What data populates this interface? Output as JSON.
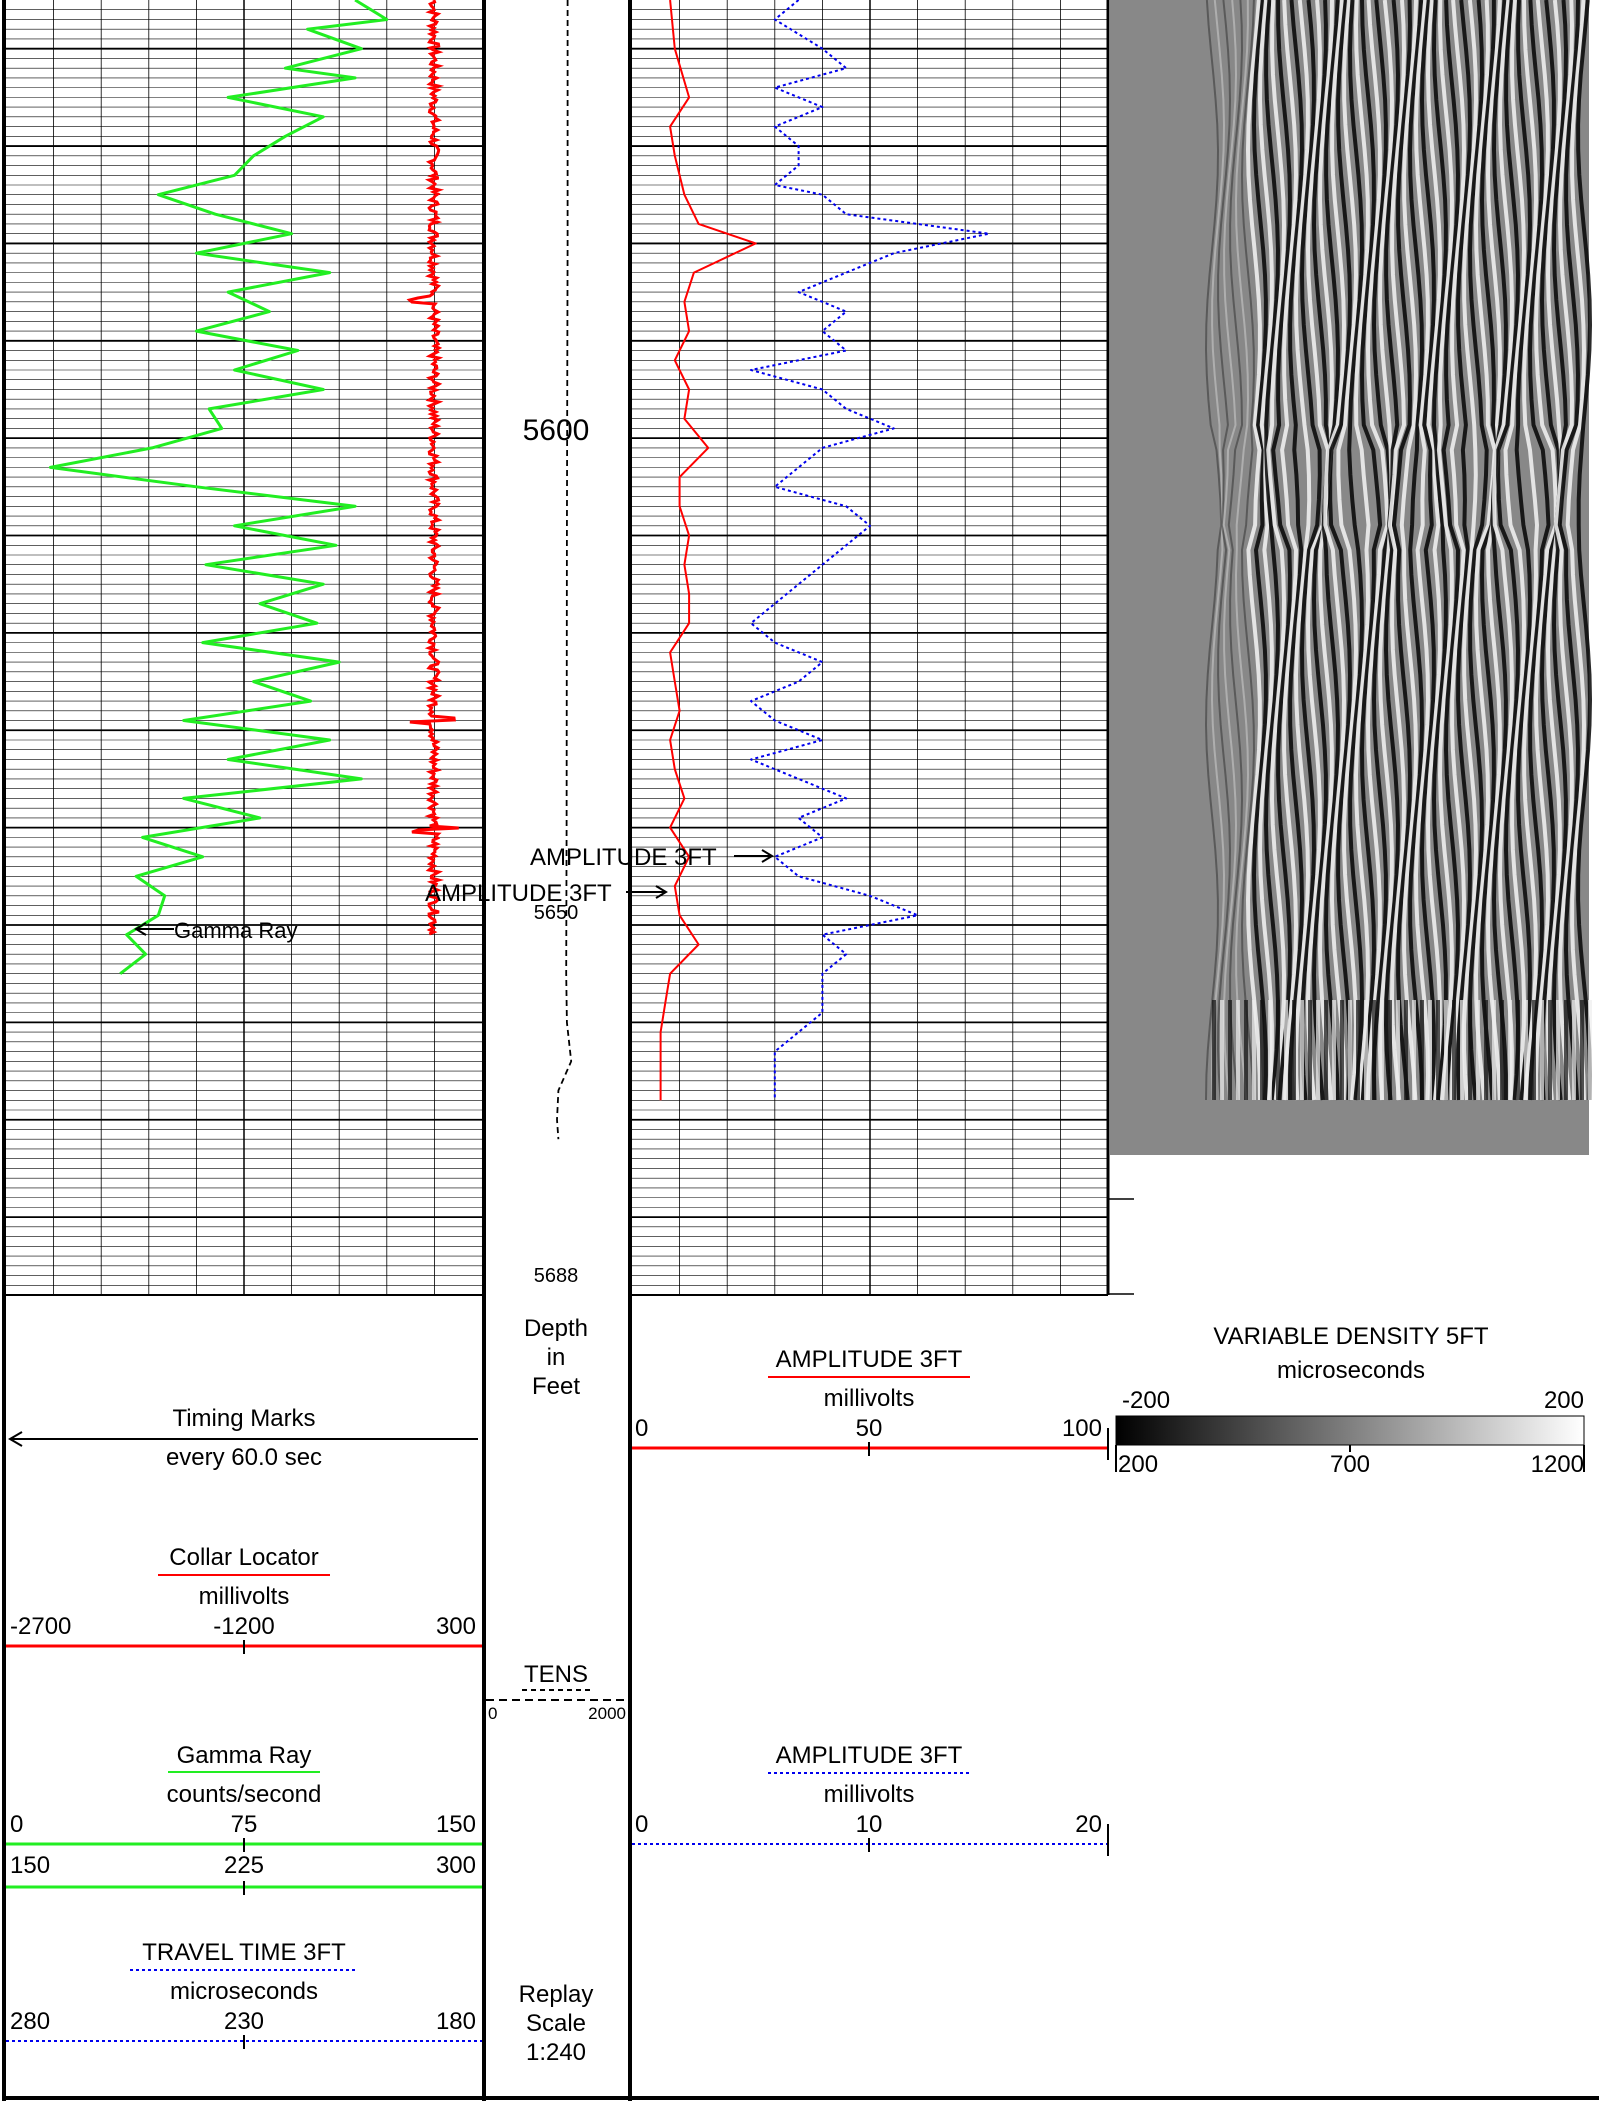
{
  "colors": {
    "gamma": "#22ee22",
    "collar": "#ff0000",
    "amp_red": "#ff0000",
    "amp_blue": "#0000ee",
    "tens": "#000000",
    "vdl_bg": "#888888"
  },
  "depth_track": {
    "labels": [
      "5600",
      "5650",
      "5688"
    ],
    "unit_lines": [
      "Depth",
      "in",
      "Feet"
    ],
    "replay": [
      "Replay",
      "Scale",
      "1:240"
    ]
  },
  "curve_labels": {
    "gamma": "Gamma Ray",
    "amp_upper": "AMPLITUDE 3FT",
    "amp_lower": "AMPLITUDE 3FT"
  },
  "legend": {
    "timing": {
      "title": "Timing Marks",
      "sub": "every 60.0 sec"
    },
    "collar": {
      "title": "Collar Locator",
      "unit": "millivolts",
      "left": "-2700",
      "mid": "-1200",
      "right": "300"
    },
    "gamma": {
      "title": "Gamma Ray",
      "unit": "counts/second",
      "scale1": {
        "left": "0",
        "mid": "75",
        "right": "150"
      },
      "scale2": {
        "left": "150",
        "mid": "225",
        "right": "300"
      }
    },
    "travel": {
      "title": "TRAVEL TIME 3FT",
      "unit": "microseconds",
      "left": "280",
      "mid": "230",
      "right": "180"
    },
    "tens": {
      "title": "TENS",
      "left": "0",
      "right": "2000"
    },
    "amp_red": {
      "title": "AMPLITUDE 3FT",
      "unit": "millivolts",
      "left": "0",
      "mid": "50",
      "right": "100"
    },
    "amp_blue": {
      "title": "AMPLITUDE 3FT",
      "unit": "millivolts",
      "left": "0",
      "mid": "10",
      "right": "20"
    },
    "vdl": {
      "title": "VARIABLE DENSITY 5FT",
      "unit": "microseconds",
      "amp_left": "-200",
      "amp_right": "200",
      "t_left": "200",
      "t_mid": "700",
      "t_right": "1200"
    }
  },
  "chart_data": {
    "type": "line",
    "depth_range": [
      5555,
      5688
    ],
    "series": [
      {
        "name": "Gamma Ray",
        "scale": [
          0,
          150
        ],
        "depth": [
          5555,
          5557,
          5558,
          5560,
          5562,
          5563,
          5565,
          5567,
          5569,
          5571,
          5573,
          5575,
          5577,
          5579,
          5581,
          5583,
          5585,
          5587,
          5589,
          5591,
          5593,
          5595,
          5597,
          5599,
          5601,
          5603,
          5605,
          5607,
          5609,
          5611,
          5613,
          5615,
          5617,
          5619,
          5621,
          5623,
          5625,
          5627,
          5629,
          5631,
          5633,
          5635,
          5637,
          5639,
          5641,
          5643,
          5645,
          5647,
          5649,
          5651,
          5653,
          5655
        ],
        "values": [
          110,
          120,
          95,
          112,
          88,
          110,
          70,
          100,
          88,
          78,
          72,
          48,
          66,
          90,
          60,
          102,
          70,
          83,
          60,
          92,
          72,
          100,
          64,
          68,
          46,
          14,
          60,
          110,
          72,
          104,
          63,
          100,
          80,
          98,
          62,
          105,
          78,
          96,
          56,
          102,
          70,
          112,
          56,
          80,
          43,
          62,
          41,
          50,
          48,
          38,
          44,
          36
        ]
      },
      {
        "name": "Collar Locator",
        "scale": [
          -2700,
          300
        ],
        "points": "spiky"
      },
      {
        "name": "AMPLITUDE 3FT",
        "scale": [
          0,
          100
        ],
        "depth": [
          5555,
          5560,
          5565,
          5568,
          5571,
          5573,
          5575,
          5578,
          5580,
          5583,
          5586,
          5589,
          5592,
          5595,
          5598,
          5601,
          5604,
          5607,
          5610,
          5613,
          5616,
          5619,
          5622,
          5625,
          5628,
          5631,
          5634,
          5637,
          5640,
          5643,
          5646,
          5649,
          5652,
          5655,
          5658,
          5661,
          5665,
          5668
        ],
        "values": [
          8,
          9,
          12,
          8,
          9,
          10,
          11,
          14,
          26,
          13,
          11,
          12,
          9,
          12,
          11,
          16,
          10,
          10,
          12,
          11,
          12,
          12,
          8,
          9,
          10,
          8,
          9,
          11,
          8,
          12,
          9,
          10,
          14,
          8,
          7,
          6,
          6,
          6
        ]
      },
      {
        "name": "AMPLITUDE 3FT",
        "scale": [
          0,
          20
        ],
        "depth": [
          5555,
          5557,
          5560,
          5562,
          5564,
          5566,
          5568,
          5570,
          5572,
          5574,
          5575,
          5577,
          5579,
          5581,
          5583,
          5585,
          5587,
          5589,
          5591,
          5593,
          5595,
          5597,
          5599,
          5601,
          5603,
          5605,
          5607,
          5609,
          5611,
          5613,
          5615,
          5617,
          5619,
          5621,
          5623,
          5625,
          5627,
          5629,
          5631,
          5633,
          5635,
          5637,
          5639,
          5641,
          5643,
          5645,
          5647,
          5649,
          5651,
          5653,
          5655,
          5657,
          5659,
          5661,
          5663,
          5665,
          5668
        ],
        "values": [
          7,
          6,
          8,
          9,
          6,
          8,
          6,
          7,
          7,
          6,
          8,
          9,
          15,
          11,
          9,
          7,
          9,
          8,
          9,
          5,
          8,
          9,
          11,
          8,
          7,
          6,
          9,
          10,
          9,
          8,
          7,
          6,
          5,
          6,
          8,
          7,
          5,
          6,
          8,
          5,
          7,
          9,
          7,
          8,
          6,
          7,
          10,
          12,
          8,
          9,
          8,
          8,
          8,
          7,
          6,
          6,
          6
        ]
      },
      {
        "name": "TENS",
        "scale": [
          0,
          2000
        ],
        "depth": [
          5555,
          5580,
          5610,
          5640,
          5655,
          5660,
          5664,
          5667,
          5670,
          5672
        ],
        "values": [
          1150,
          1150,
          1140,
          1135,
          1130,
          1140,
          1200,
          1020,
          1000,
          1020
        ]
      }
    ]
  }
}
